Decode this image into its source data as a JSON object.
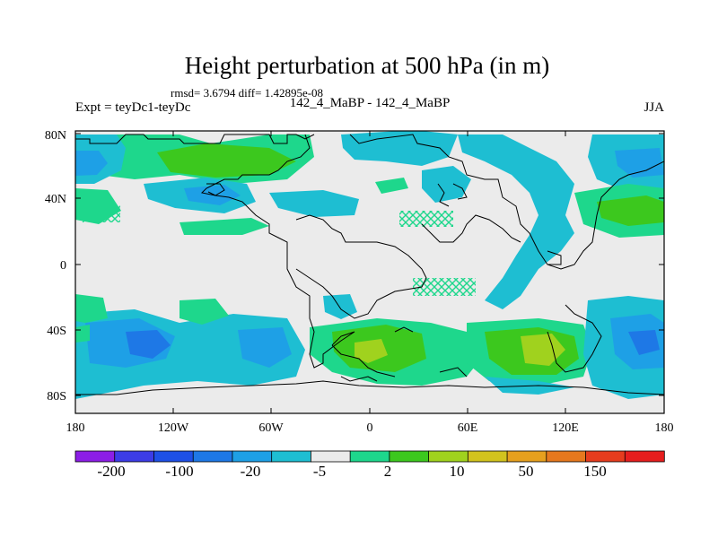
{
  "title": "Height perturbation at 500 hPa (in m)",
  "stats_line": "rmsd= 3.6794 diff= 1.42895e-08",
  "left_label": "Expt = teyDc1-teyDc",
  "center_label": "142_4_MaBP - 142_4_MaBP",
  "right_label": "JJA",
  "y_ticks": [
    "80N",
    "40N",
    "0",
    "40S",
    "80S"
  ],
  "x_ticks": [
    "180",
    "120W",
    "60W",
    "0",
    "60E",
    "120E",
    "180"
  ],
  "colorbar": {
    "colors": [
      "#8c1ee6",
      "#3c3ce6",
      "#1e50e6",
      "#1e78e6",
      "#1ea0e6",
      "#1ebed2",
      "#ebebeb",
      "#1ed78c",
      "#3cc81e",
      "#a0d21e",
      "#d2c31e",
      "#e6a01e",
      "#e6781e",
      "#e63c1e",
      "#e61e1e"
    ],
    "labels": [
      "-200",
      "-100",
      "-20",
      "-5",
      "2",
      "10",
      "50",
      "150"
    ]
  }
}
